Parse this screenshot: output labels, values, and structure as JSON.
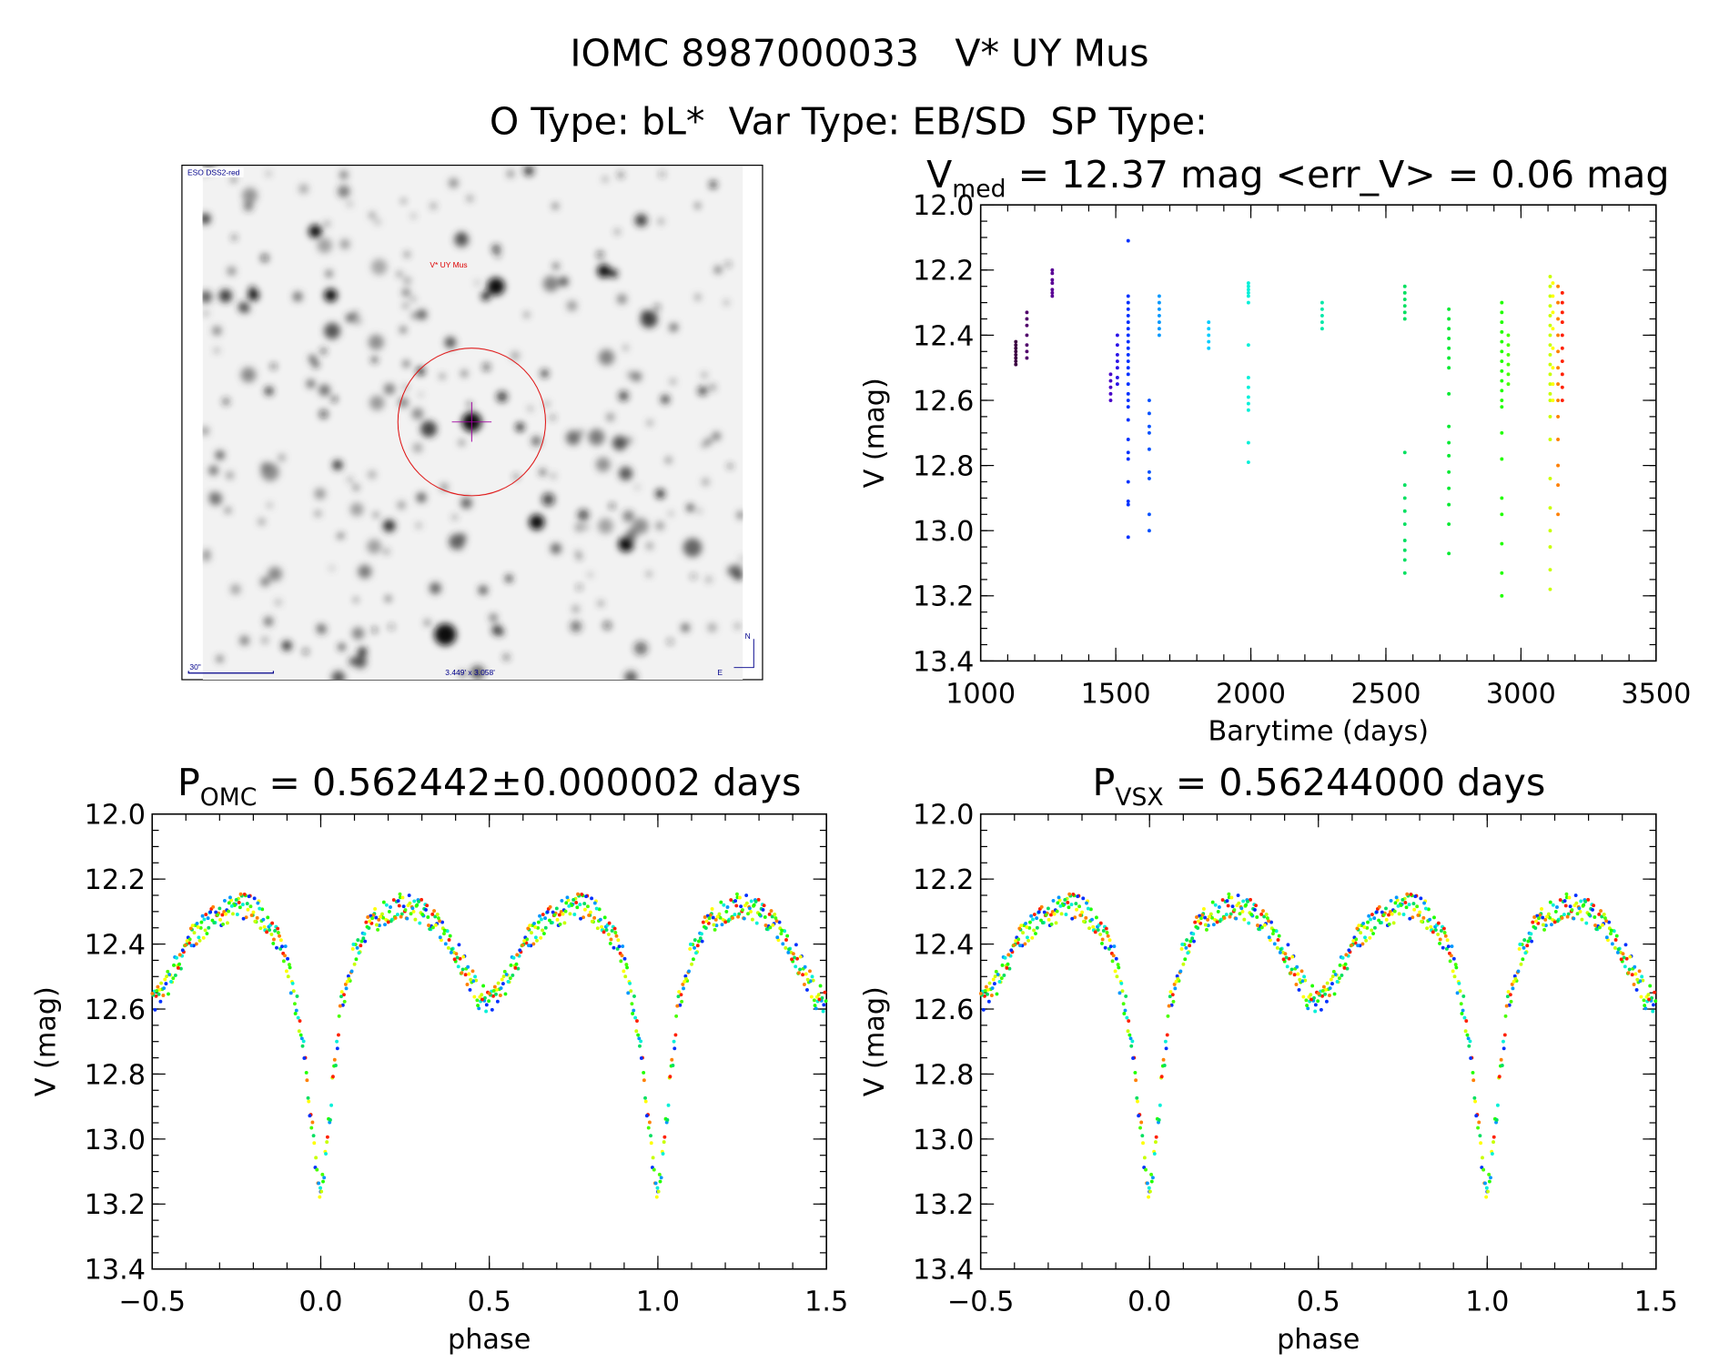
{
  "header": {
    "title": "IOMC 8987000033   V* UY Mus",
    "subtitle": "O Type: bL*  Var Type: EB/SD  SP Type:"
  },
  "thumbnail": {
    "survey": "ESO DSS2-red",
    "target": "V* UY Mus",
    "scale": "30\"",
    "fov": "3.449' x 3.058'",
    "north": "N",
    "east": "E"
  },
  "chart_data": [
    {
      "type": "scatter",
      "title_main": "V",
      "title_sub": "med",
      "title_rest": " = 12.37 mag <err_V> = 0.06 mag",
      "xlabel": "Barytime (days)",
      "ylabel": "V (mag)",
      "xlim": [
        1000,
        3500
      ],
      "ylim": [
        13.4,
        12.0
      ],
      "xticks": [
        "1000",
        "1500",
        "2000",
        "2500",
        "3000",
        "3500"
      ],
      "yticks": [
        "12.0",
        "12.2",
        "12.4",
        "12.6",
        "12.8",
        "13.0",
        "13.2",
        "13.4"
      ],
      "groups": [
        {
          "t": 1130,
          "color": "#3a0040",
          "mags": [
            12.42,
            12.43,
            12.44,
            12.45,
            12.46,
            12.47,
            12.48,
            12.49
          ]
        },
        {
          "t": 1171,
          "color": "#50006a",
          "mags": [
            12.33,
            12.35,
            12.37,
            12.4,
            12.43,
            12.45,
            12.47
          ]
        },
        {
          "t": 1265,
          "color": "#5a0095",
          "mags": [
            12.2,
            12.21,
            12.23,
            12.24,
            12.26,
            12.27,
            12.28
          ]
        },
        {
          "t": 1481,
          "color": "#4800c8",
          "mags": [
            12.52,
            12.54,
            12.56,
            12.58,
            12.6
          ]
        },
        {
          "t": 1506,
          "color": "#2a10e6",
          "mags": [
            12.4,
            12.43,
            12.46,
            12.48,
            12.5,
            12.53,
            12.55
          ]
        },
        {
          "t": 1546,
          "color": "#0030ff",
          "mags": [
            12.11,
            12.28,
            12.3,
            12.32,
            12.34,
            12.36,
            12.38,
            12.4,
            12.42,
            12.44,
            12.46,
            12.48,
            12.5,
            12.52,
            12.55,
            12.58,
            12.6,
            12.62,
            12.66,
            12.72,
            12.76,
            12.78,
            12.85,
            12.91,
            12.92,
            13.02
          ]
        },
        {
          "t": 1624,
          "color": "#0050ff",
          "mags": [
            12.6,
            12.64,
            12.68,
            12.7,
            12.75,
            12.82,
            12.84,
            12.95,
            13.0
          ]
        },
        {
          "t": 1661,
          "color": "#0098ff",
          "mags": [
            12.28,
            12.3,
            12.32,
            12.34,
            12.36,
            12.38,
            12.4
          ]
        },
        {
          "t": 1844,
          "color": "#00ccff",
          "mags": [
            12.36,
            12.38,
            12.4,
            12.42,
            12.44
          ]
        },
        {
          "t": 1991,
          "color": "#00f0d8",
          "mags": [
            12.24,
            12.25,
            12.26,
            12.27,
            12.28,
            12.3,
            12.43,
            12.53,
            12.56,
            12.59,
            12.61,
            12.63,
            12.73,
            12.79
          ]
        },
        {
          "t": 2264,
          "color": "#00e8a8",
          "mags": [
            12.3,
            12.32,
            12.34,
            12.36,
            12.38
          ]
        },
        {
          "t": 2570,
          "color": "#00e060",
          "mags": [
            12.25,
            12.27,
            12.29,
            12.31,
            12.33,
            12.35,
            12.76,
            12.86,
            12.9,
            12.94,
            12.98,
            13.03,
            13.06,
            13.09,
            13.13
          ]
        },
        {
          "t": 2733,
          "color": "#00ea30",
          "mags": [
            12.32,
            12.35,
            12.38,
            12.41,
            12.44,
            12.47,
            12.5,
            12.58,
            12.68,
            12.73,
            12.77,
            12.82,
            12.87,
            12.92,
            12.98,
            13.07
          ]
        },
        {
          "t": 2929,
          "color": "#20ff00",
          "mags": [
            12.3,
            12.33,
            12.36,
            12.39,
            12.42,
            12.45,
            12.48,
            12.51,
            12.54,
            12.57,
            12.6,
            12.62,
            12.7,
            12.78,
            12.9,
            12.95,
            13.04,
            13.13,
            13.2
          ]
        },
        {
          "t": 2953,
          "color": "#48ff00",
          "mags": [
            12.4,
            12.43,
            12.46,
            12.49,
            12.52,
            12.55
          ]
        },
        {
          "t": 3108,
          "color": "#c8ff00",
          "mags": [
            12.22,
            12.25,
            12.28,
            12.31,
            12.34,
            12.37,
            12.4,
            12.43,
            12.46,
            12.49,
            12.52,
            12.55,
            12.58,
            12.6,
            12.65,
            12.72,
            12.84,
            12.93,
            13.0,
            13.05,
            13.12,
            13.18
          ]
        },
        {
          "t": 3118,
          "color": "#ffff00",
          "mags": [
            12.24,
            12.28,
            12.33,
            12.38,
            12.44,
            12.5,
            12.55,
            12.6
          ]
        },
        {
          "t": 3137,
          "color": "#ff8000",
          "mags": [
            12.25,
            12.3,
            12.35,
            12.4,
            12.45,
            12.5,
            12.55,
            12.6,
            12.65,
            12.72,
            12.8,
            12.86,
            12.95
          ]
        },
        {
          "t": 3153,
          "color": "#ff2000",
          "mags": [
            12.27,
            12.3,
            12.33,
            12.36,
            12.4,
            12.44,
            12.48,
            12.52,
            12.56,
            12.6
          ]
        }
      ]
    },
    {
      "type": "scatter",
      "title_main": "P",
      "title_sub": "OMC",
      "title_rest": " = 0.562442±0.000002 days",
      "xlabel": "phase",
      "ylabel": "V (mag)",
      "xlim": [
        -0.5,
        1.5
      ],
      "ylim": [
        13.4,
        12.0
      ],
      "xticks": [
        "−0.5",
        "0.0",
        "0.5",
        "1.0",
        "1.5"
      ],
      "yticks": [
        "12.0",
        "12.2",
        "12.4",
        "12.6",
        "12.8",
        "13.0",
        "13.2",
        "13.4"
      ]
    },
    {
      "type": "scatter",
      "title_main": "P",
      "title_sub": "VSX",
      "title_rest": " = 0.56244000 days",
      "xlabel": "phase",
      "ylabel": "V (mag)",
      "xlim": [
        -0.5,
        1.5
      ],
      "ylim": [
        13.4,
        12.0
      ],
      "xticks": [
        "−0.5",
        "0.0",
        "0.5",
        "1.0",
        "1.5"
      ],
      "yticks": [
        "12.0",
        "12.2",
        "12.4",
        "12.6",
        "12.8",
        "13.0",
        "13.2",
        "13.4"
      ]
    }
  ],
  "phase_curve": [
    [
      0,
      13.18
    ],
    [
      0.01,
      13.1
    ],
    [
      0.02,
      13.0
    ],
    [
      0.03,
      12.88
    ],
    [
      0.04,
      12.78
    ],
    [
      0.05,
      12.68
    ],
    [
      0.06,
      12.6
    ],
    [
      0.08,
      12.5
    ],
    [
      0.1,
      12.43
    ],
    [
      0.13,
      12.37
    ],
    [
      0.16,
      12.33
    ],
    [
      0.2,
      12.3
    ],
    [
      0.25,
      12.28
    ],
    [
      0.3,
      12.3
    ],
    [
      0.35,
      12.35
    ],
    [
      0.4,
      12.42
    ],
    [
      0.44,
      12.5
    ],
    [
      0.47,
      12.56
    ],
    [
      0.5,
      12.58
    ],
    [
      0.53,
      12.55
    ],
    [
      0.57,
      12.47
    ],
    [
      0.62,
      12.38
    ],
    [
      0.68,
      12.32
    ],
    [
      0.75,
      12.28
    ],
    [
      0.8,
      12.29
    ],
    [
      0.84,
      12.33
    ],
    [
      0.88,
      12.4
    ],
    [
      0.9,
      12.46
    ],
    [
      0.92,
      12.55
    ],
    [
      0.94,
      12.65
    ],
    [
      0.95,
      12.72
    ],
    [
      0.96,
      12.82
    ],
    [
      0.97,
      12.92
    ],
    [
      0.98,
      13.02
    ],
    [
      0.99,
      13.12
    ],
    [
      1.0,
      13.18
    ]
  ],
  "phase_colors": [
    "#0030ff",
    "#00e060",
    "#20ff00",
    "#c8ff00",
    "#ffff00",
    "#ff8000",
    "#ff2000",
    "#00f0d8",
    "#0098ff",
    "#48ff00"
  ]
}
